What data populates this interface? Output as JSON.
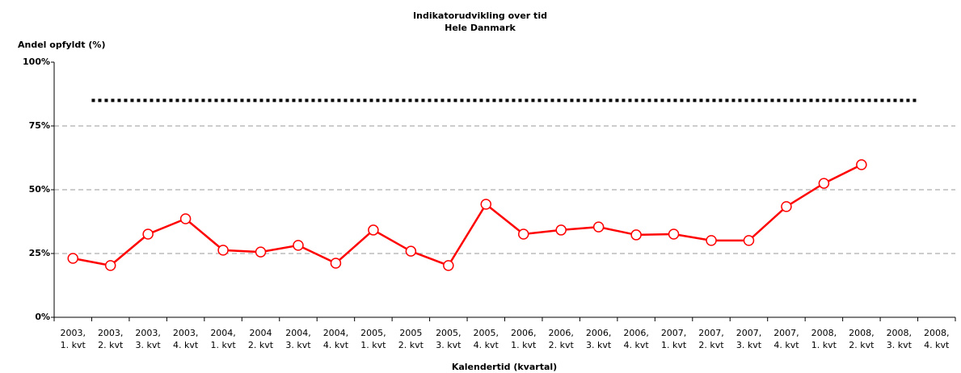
{
  "chart_data": {
    "type": "line",
    "title": [
      "Indikatorudvikling over tid",
      "Hele Danmark"
    ],
    "y_label": "Andel opfyldt (%)",
    "x_label": "Kalendertid (kvartal)",
    "categories": [
      [
        "2003,",
        "1. kvt"
      ],
      [
        "2003,",
        "2. kvt"
      ],
      [
        "2003,",
        "3. kvt"
      ],
      [
        "2003,",
        "4. kvt"
      ],
      [
        "2004,",
        "1. kvt"
      ],
      [
        "2004",
        "2. kvt"
      ],
      [
        "2004,",
        "3. kvt"
      ],
      [
        "2004,",
        "4. kvt"
      ],
      [
        "2005,",
        "1. kvt"
      ],
      [
        "2005",
        "2. kvt"
      ],
      [
        "2005,",
        "3. kvt"
      ],
      [
        "2005,",
        "4. kvt"
      ],
      [
        "2006,",
        "1. kvt"
      ],
      [
        "2006,",
        "2. kvt"
      ],
      [
        "2006,",
        "3. kvt"
      ],
      [
        "2006,",
        "4. kvt"
      ],
      [
        "2007,",
        "1. kvt"
      ],
      [
        "2007,",
        "2. kvt"
      ],
      [
        "2007,",
        "3. kvt"
      ],
      [
        "2007,",
        "4. kvt"
      ],
      [
        "2008,",
        "1. kvt"
      ],
      [
        "2008,",
        "2. kvt"
      ],
      [
        "2008,",
        "3. kvt"
      ],
      [
        "2008,",
        "4. kvt"
      ]
    ],
    "values": [
      23.1,
      20.3,
      32.6,
      38.6,
      26.3,
      25.6,
      28.2,
      21.2,
      34.2,
      25.9,
      20.3,
      44.3,
      32.6,
      34.2,
      35.4,
      32.3,
      32.6,
      30.1,
      30.1,
      43.4,
      52.5,
      59.8,
      null,
      null
    ],
    "color": "#ff0000",
    "target": 85,
    "ylim": [
      0,
      100
    ],
    "yticks": [
      {
        "value": 0,
        "label": "0%"
      },
      {
        "value": 25,
        "label": "25%"
      },
      {
        "value": 50,
        "label": "50%"
      },
      {
        "value": 75,
        "label": "75%"
      },
      {
        "value": 100,
        "label": "100%"
      }
    ],
    "grid": true
  }
}
